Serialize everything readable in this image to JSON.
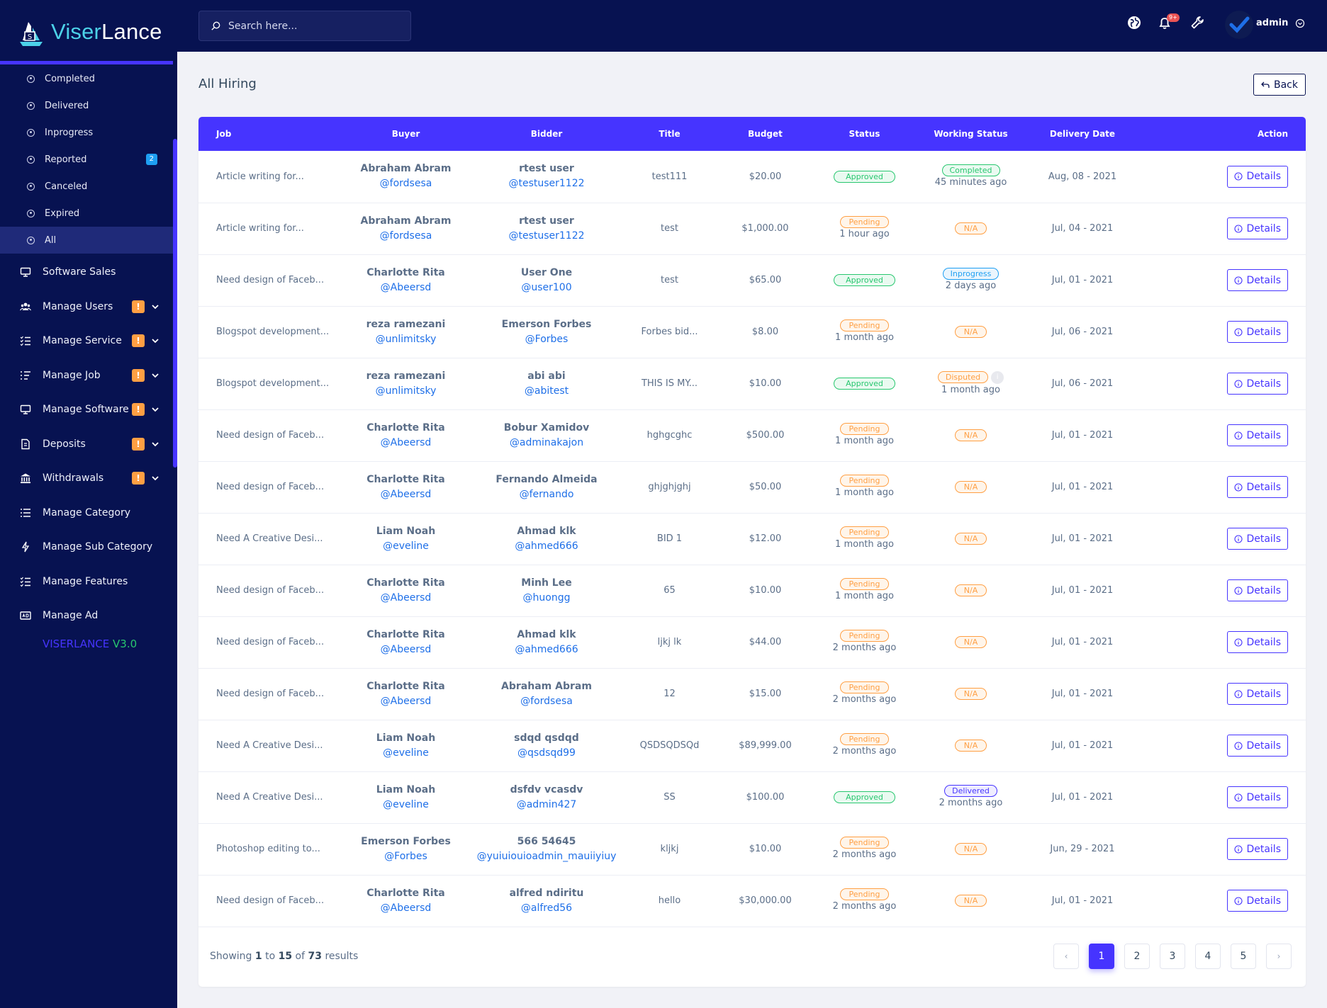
{
  "brand": {
    "name_part1": "Viser",
    "name_part2": "Lance",
    "version_part1": "VISERLANCE",
    "version_part2": "V3.0"
  },
  "search": {
    "placeholder": "Search here..."
  },
  "topbar": {
    "notification_count": "9+",
    "admin_name": "admin"
  },
  "sidebar": {
    "submenu": [
      {
        "label": "Completed"
      },
      {
        "label": "Delivered"
      },
      {
        "label": "Inprogress"
      },
      {
        "label": "Reported",
        "badge": "2"
      },
      {
        "label": "Canceled"
      },
      {
        "label": "Expired"
      },
      {
        "label": "All",
        "active": true
      }
    ],
    "menu": [
      {
        "label": "Software Sales",
        "icon": "monitor-icon"
      },
      {
        "label": "Manage Users",
        "icon": "users-icon",
        "warn": "!"
      },
      {
        "label": "Manage Service",
        "icon": "list-check-icon",
        "warn": "!"
      },
      {
        "label": "Manage Job",
        "icon": "list-icon",
        "warn": "!"
      },
      {
        "label": "Manage Software",
        "icon": "monitor-icon",
        "warn": "!"
      },
      {
        "label": "Deposits",
        "icon": "deposit-icon",
        "warn": "!"
      },
      {
        "label": "Withdrawals",
        "icon": "bank-icon",
        "warn": "!"
      },
      {
        "label": "Manage Category",
        "icon": "list-icon"
      },
      {
        "label": "Manage Sub Category",
        "icon": "bolt-icon"
      },
      {
        "label": "Manage Features",
        "icon": "list-check-icon"
      },
      {
        "label": "Manage Ad",
        "icon": "ad-icon"
      }
    ]
  },
  "page": {
    "title": "All Hiring",
    "back_label": "Back"
  },
  "table": {
    "headers": [
      "Job",
      "Buyer",
      "Bidder",
      "Title",
      "Budget",
      "Status",
      "Working Status",
      "Delivery Date",
      "Action"
    ],
    "details_label": "Details",
    "rows": [
      {
        "job": "Article writing for...",
        "buyer": "Abraham Abram",
        "buyer_user": "@fordsesa",
        "bidder": "rtest user",
        "bidder_user": "@testuser1122",
        "title": "test111",
        "budget": "$20.00",
        "status": "Approved",
        "status_time": "",
        "working": "Completed",
        "working_time": "45 minutes ago"
      },
      {
        "job": "Article writing for...",
        "buyer": "Abraham Abram",
        "buyer_user": "@fordsesa",
        "bidder": "rtest user",
        "bidder_user": "@testuser1122",
        "title": "test",
        "budget": "$1,000.00",
        "status": "Pending",
        "status_time": "1 hour ago",
        "working": "N/A",
        "working_time": ""
      },
      {
        "job": "Need design of Faceb...",
        "buyer": "Charlotte Rita",
        "buyer_user": "@Abeersd",
        "bidder": "User One",
        "bidder_user": "@user100",
        "title": "test",
        "budget": "$65.00",
        "status": "Approved",
        "status_time": "",
        "working": "Inprogress",
        "working_time": "2 days ago"
      },
      {
        "job": "Blogspot development...",
        "buyer": "reza ramezani",
        "buyer_user": "@unlimitsky",
        "bidder": "Emerson Forbes",
        "bidder_user": "@Forbes",
        "title": "Forbes bid...",
        "budget": "$8.00",
        "status": "Pending",
        "status_time": "1 month ago",
        "working": "N/A",
        "working_time": ""
      },
      {
        "job": "Blogspot development...",
        "buyer": "reza ramezani",
        "buyer_user": "@unlimitsky",
        "bidder": "abi abi",
        "bidder_user": "@abitest",
        "title": "THIS IS MY...",
        "budget": "$10.00",
        "status": "Approved",
        "status_time": "",
        "working": "Disputed",
        "working_time": "1 month ago",
        "info": "i"
      },
      {
        "job": "Need design of Faceb...",
        "buyer": "Charlotte Rita",
        "buyer_user": "@Abeersd",
        "bidder": "Bobur Xamidov",
        "bidder_user": "@adminakajon",
        "title": "hghgcghc",
        "budget": "$500.00",
        "status": "Pending",
        "status_time": "1 month ago",
        "working": "N/A",
        "working_time": ""
      },
      {
        "job": "Need design of Faceb...",
        "buyer": "Charlotte Rita",
        "buyer_user": "@Abeersd",
        "bidder": "Fernando Almeida",
        "bidder_user": "@fernando",
        "title": "ghjghjghj",
        "budget": "$50.00",
        "status": "Pending",
        "status_time": "1 month ago",
        "working": "N/A",
        "working_time": ""
      },
      {
        "job": "Need A Creative Desi...",
        "buyer": "Liam Noah",
        "buyer_user": "@eveline",
        "bidder": "Ahmad klk",
        "bidder_user": "@ahmed666",
        "title": "BID 1",
        "budget": "$12.00",
        "status": "Pending",
        "status_time": "1 month ago",
        "working": "N/A",
        "working_time": ""
      },
      {
        "job": "Need design of Faceb...",
        "buyer": "Charlotte Rita",
        "buyer_user": "@Abeersd",
        "bidder": "Minh Lee",
        "bidder_user": "@huongg",
        "title": "65",
        "budget": "$10.00",
        "status": "Pending",
        "status_time": "1 month ago",
        "working": "N/A",
        "working_time": ""
      },
      {
        "job": "Need design of Faceb...",
        "buyer": "Charlotte Rita",
        "buyer_user": "@Abeersd",
        "bidder": "Ahmad klk",
        "bidder_user": "@ahmed666",
        "title": "ljkj lk",
        "budget": "$44.00",
        "status": "Pending",
        "status_time": "2 months ago",
        "working": "N/A",
        "working_time": ""
      },
      {
        "job": "Need design of Faceb...",
        "buyer": "Charlotte Rita",
        "buyer_user": "@Abeersd",
        "bidder": "Abraham Abram",
        "bidder_user": "@fordsesa",
        "title": "12",
        "budget": "$15.00",
        "status": "Pending",
        "status_time": "2 months ago",
        "working": "N/A",
        "working_time": ""
      },
      {
        "job": "Need A Creative Desi...",
        "buyer": "Liam Noah",
        "buyer_user": "@eveline",
        "bidder": "sdqd qsdqd",
        "bidder_user": "@qsdsqd99",
        "title": "QSDSQDSQd",
        "budget": "$89,999.00",
        "status": "Pending",
        "status_time": "2 months ago",
        "working": "N/A",
        "working_time": ""
      },
      {
        "job": "Need A Creative Desi...",
        "buyer": "Liam Noah",
        "buyer_user": "@eveline",
        "bidder": "dsfdv vcasdv",
        "bidder_user": "@admin427",
        "title": "SS",
        "budget": "$100.00",
        "status": "Approved",
        "status_time": "",
        "working": "Delivered",
        "working_time": "2 months ago"
      },
      {
        "job": "Photoshop editing to...",
        "buyer": "Emerson Forbes",
        "buyer_user": "@Forbes",
        "bidder": "566 54645",
        "bidder_user": "@yuiuiouioadmin_mauiiyiuy",
        "title": "kljkj",
        "budget": "$10.00",
        "status": "Pending",
        "status_time": "2 months ago",
        "working": "N/A",
        "working_time": ""
      },
      {
        "job": "Need design of Faceb...",
        "buyer": "Charlotte Rita",
        "buyer_user": "@Abeersd",
        "bidder": "alfred ndiritu",
        "bidder_user": "@alfred56",
        "title": "hello",
        "budget": "$30,000.00",
        "status": "Pending",
        "status_time": "2 months ago",
        "working": "N/A",
        "working_time": ""
      }
    ],
    "delivery_dates": [
      "Aug, 08 - 2021",
      "Jul, 04 - 2021",
      "Jul, 01 - 2021",
      "Jul, 06 - 2021",
      "Jul, 06 - 2021",
      "Jul, 01 - 2021",
      "Jul, 01 - 2021",
      "Jul, 01 - 2021",
      "Jul, 01 - 2021",
      "Jul, 01 - 2021",
      "Jul, 01 - 2021",
      "Jul, 01 - 2021",
      "Jul, 01 - 2021",
      "Jun, 29 - 2021",
      "Jul, 01 - 2021"
    ]
  },
  "pagination": {
    "showing_prefix": "Showing",
    "from": "1",
    "to_word": "to",
    "to": "15",
    "of_word": "of",
    "total": "73",
    "results_word": "results",
    "prev": "‹",
    "next": "›",
    "pages": [
      "1",
      "2",
      "3",
      "4",
      "5"
    ],
    "current": "1"
  },
  "colors": {
    "sidebar": "#071251",
    "accent": "#4634ff",
    "success": "#28c76f",
    "warning": "#ff9f43",
    "info": "#1e9ff2"
  }
}
